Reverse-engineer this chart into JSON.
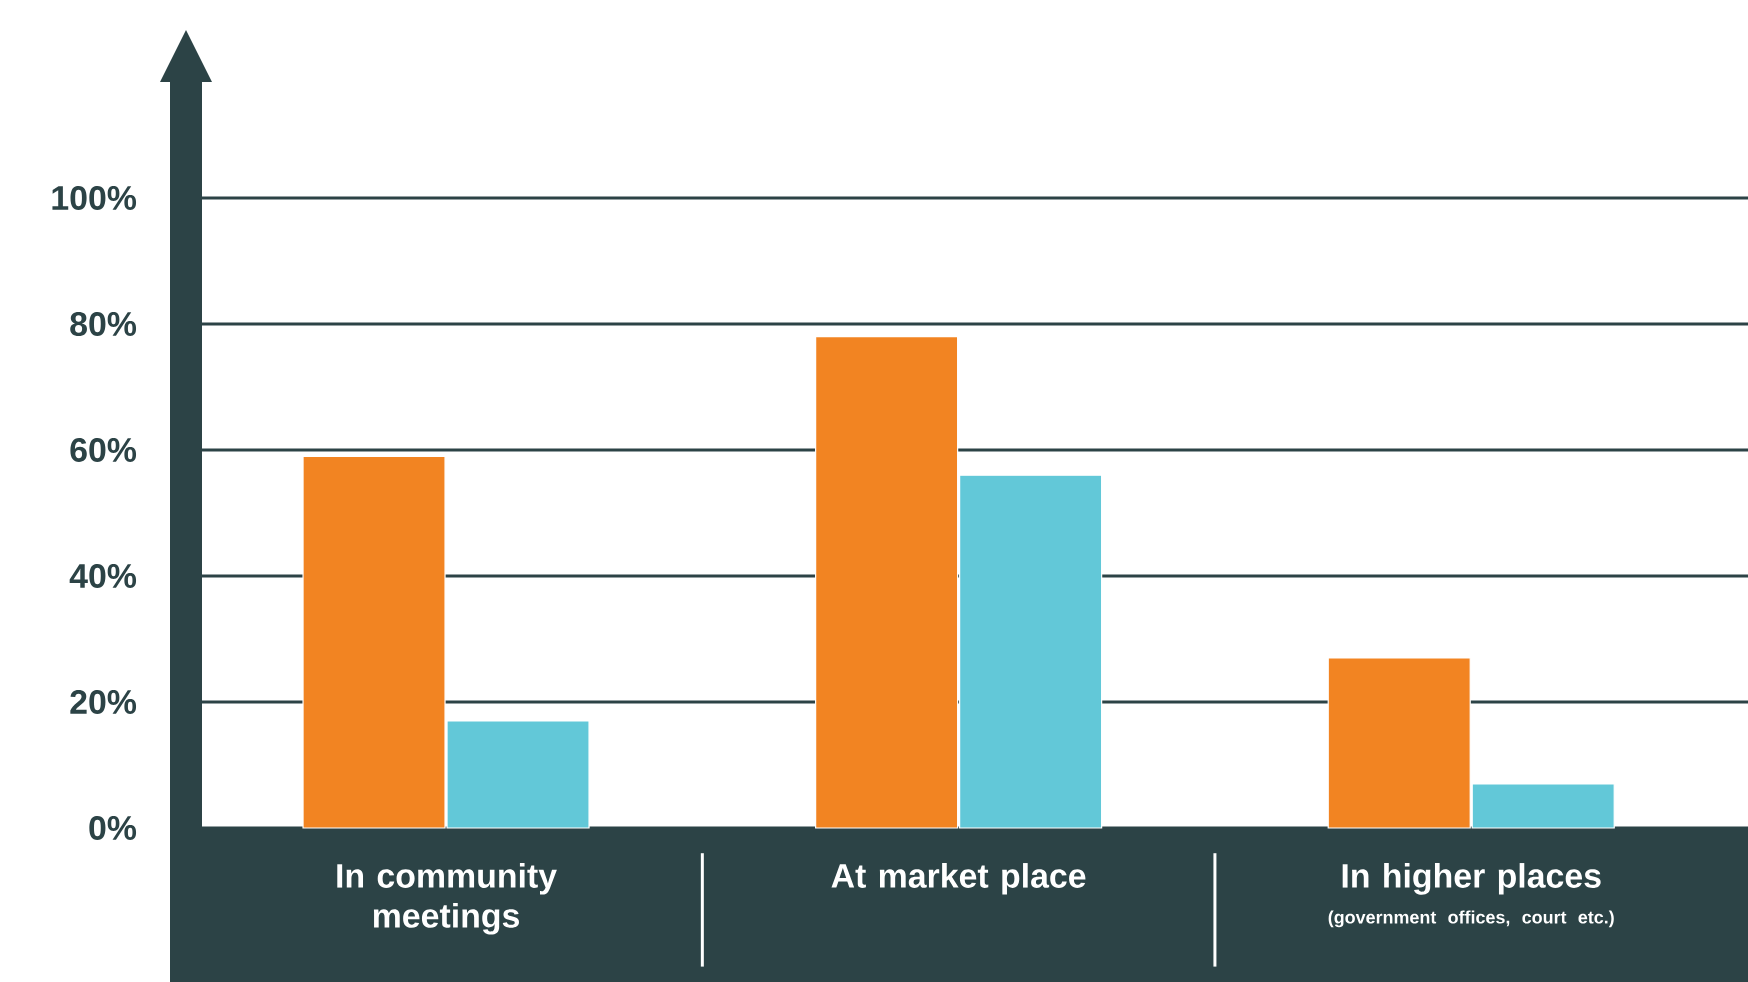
{
  "chart_data": {
    "type": "bar",
    "categories": [
      "In community meetings",
      "At market place",
      "In higher places"
    ],
    "series": [
      {
        "color": "#f28422",
        "values": [
          59,
          78,
          27
        ]
      },
      {
        "color": "#62c8d8",
        "values": [
          17,
          56,
          7
        ]
      }
    ],
    "ylim": [
      0,
      100
    ],
    "yticks": [
      {
        "value": 0,
        "label": "0%"
      },
      {
        "value": 20,
        "label": "20%"
      },
      {
        "value": 40,
        "label": "40%"
      },
      {
        "value": 60,
        "label": "60%"
      },
      {
        "value": 80,
        "label": "80%"
      },
      {
        "value": 100,
        "label": "100%"
      }
    ],
    "grid": "y",
    "annotations": [
      "(government offices, court etc.)"
    ]
  }
}
